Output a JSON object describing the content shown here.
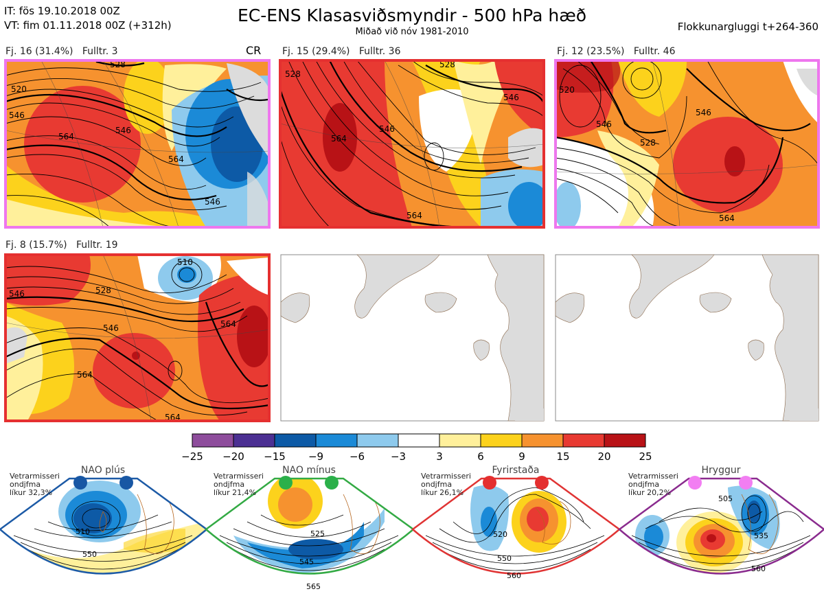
{
  "header": {
    "it": "IT: fös 19.10.2018 00Z",
    "vt": "VT: fim 01.11.2018 00Z  (+312h)",
    "title": "EC-ENS Klasasviðsmyndir - 500 hPa hæð",
    "subtitle": "Miðað við nóv 1981-2010",
    "right": "Flokkunargluggi t+264-360"
  },
  "panels": [
    {
      "label": "Fj. 16 (31.4%)   Fulltr. 3",
      "regime": "nao-plus",
      "frame_color": "#ee77ee",
      "extra": "CR",
      "contours": [
        "520",
        "528",
        "546",
        "564",
        "546",
        "564",
        "546"
      ]
    },
    {
      "label": "Fj. 15 (29.4%)   Fulltr. 36",
      "regime": "atlantic-ridge",
      "frame_color": "#e53030",
      "contours": [
        "528",
        "546",
        "564",
        "564",
        "546",
        "528"
      ]
    },
    {
      "label": "Fj. 12 (23.5%)   Fulltr. 46",
      "regime": "blocking",
      "frame_color": "#ee77ee",
      "contours": [
        "520",
        "528",
        "546",
        "546",
        "564"
      ]
    },
    {
      "label": "Fj. 8 (15.7%)   Fulltr. 19",
      "regime": "atlantic-ridge",
      "frame_color": "#e53030",
      "contours": [
        "510",
        "528",
        "546",
        "546",
        "564",
        "564",
        "564"
      ]
    }
  ],
  "colorbar": {
    "ticks": [
      "−25",
      "−20",
      "−15",
      "−9",
      "−6",
      "−3",
      "3",
      "6",
      "9",
      "15",
      "20",
      "25"
    ],
    "colors": [
      "#8e4d9c",
      "#4c3093",
      "#0d5aa6",
      "#1b8ad7",
      "#8ecaed",
      "#ffffff",
      "#fff09b",
      "#fcd21c",
      "#f6922f",
      "#e83a32",
      "#b81216"
    ]
  },
  "climatology": [
    {
      "title": "NAO plús",
      "label": "Vetrarmisseri\nondjfma\nlíkur 32,3%",
      "dot_color": "#1857a4",
      "frame_color": "#1c5aa6",
      "contours": [
        "510",
        "550"
      ]
    },
    {
      "title": "NAO mínus",
      "label": "Vetrarmisseri\nondjfma\nlíkur 21,4%",
      "dot_color": "#2bb04a",
      "frame_color": "#33aa44",
      "contours": [
        "525",
        "545",
        "565"
      ]
    },
    {
      "title": "Fyrirstaða",
      "label": "Vetrarmisseri\nondjfma\nlíkur 26,1%",
      "dot_color": "#e42f2f",
      "frame_color": "#e03434",
      "contours": [
        "520",
        "550",
        "560"
      ]
    },
    {
      "title": "Hryggur",
      "label": "Vetrarmisseri\nondjfma\nlíkur 20,2%",
      "dot_color": "#f27ef2",
      "frame_color": "#8a2b8e",
      "contours": [
        "505",
        "535",
        "560"
      ]
    }
  ]
}
